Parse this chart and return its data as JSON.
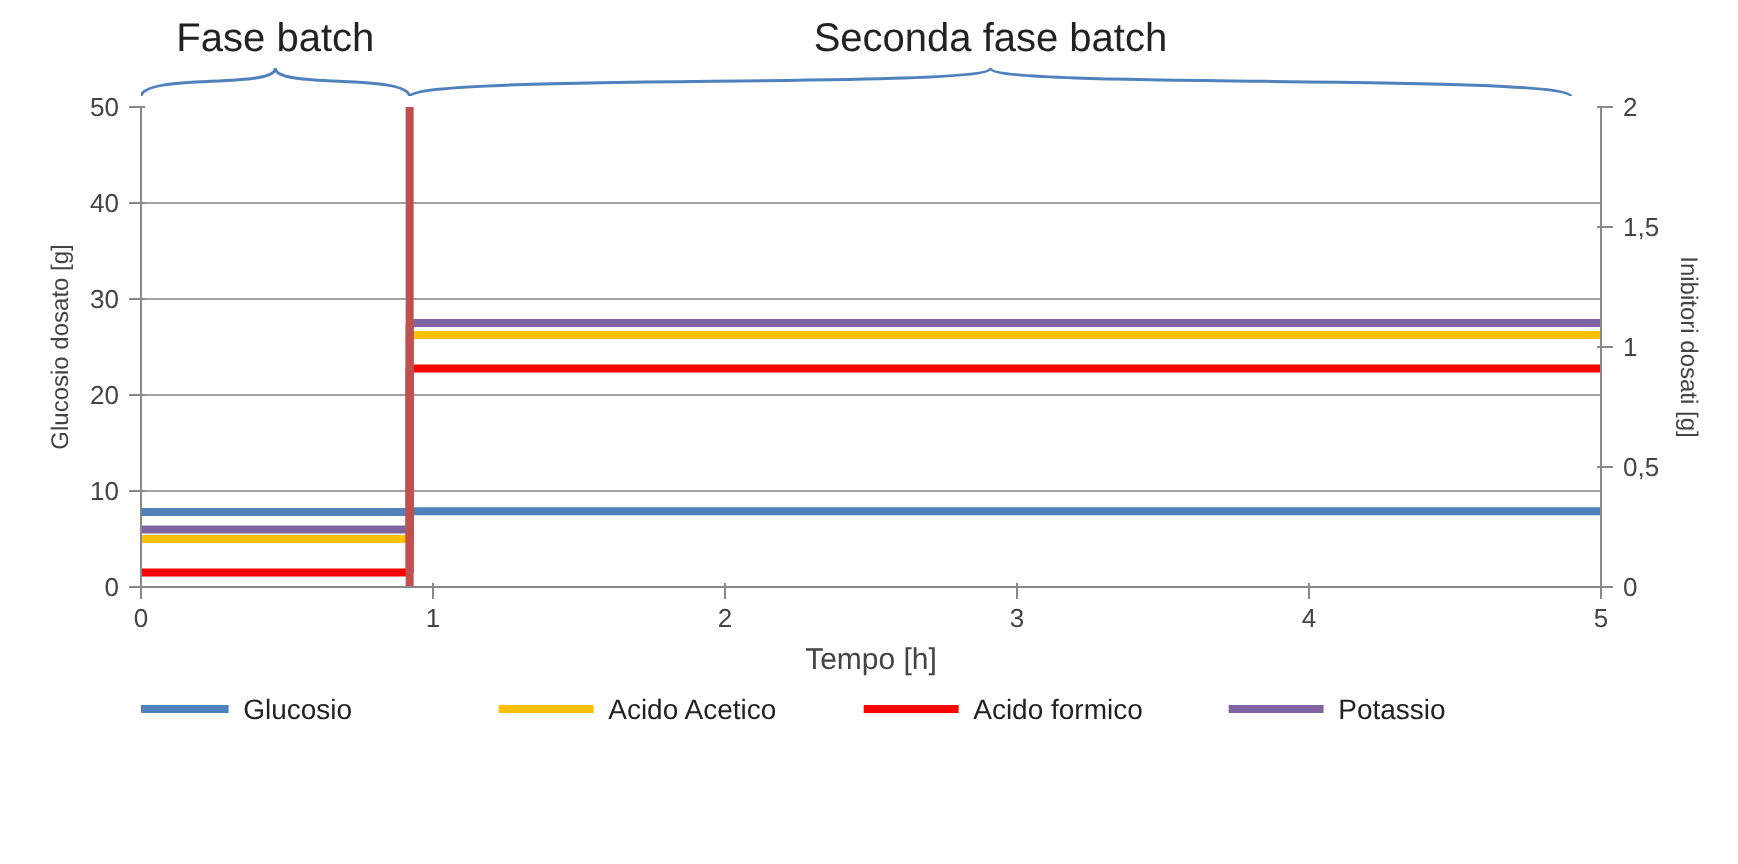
{
  "chart_data": {
    "type": "step",
    "xlabel": "Tempo [h]",
    "ylabel": "Glucosio dosato [g]",
    "y2label": "Inibitori dosati [g]",
    "xlim": [
      0,
      5
    ],
    "xticks": [
      0,
      1,
      2,
      3,
      4,
      5
    ],
    "ylim": [
      0,
      50
    ],
    "yticks": [
      0,
      10,
      20,
      30,
      40,
      50
    ],
    "y2lim": [
      0,
      2
    ],
    "y2ticks": [
      0,
      {
        "value": 0.5,
        "label": "0,5"
      },
      1,
      {
        "value": 1.5,
        "label": "1,5"
      },
      2
    ],
    "x": [
      0,
      0.92,
      5
    ],
    "series": [
      {
        "name": "Glucosio",
        "color": "#4f81bd",
        "values": [
          7.8,
          7.9,
          7.9
        ]
      },
      {
        "name": "Acido Acetico",
        "color": "#ffc000",
        "axis": "y2",
        "values": [
          0.2,
          1.05,
          1.05
        ]
      },
      {
        "name": "Acido formico",
        "color": "#ff0000",
        "axis": "y2",
        "values": [
          0.06,
          0.91,
          0.91
        ]
      },
      {
        "name": "Potassio",
        "color": "#8064a2",
        "axis": "y2",
        "values": [
          0.24,
          1.1,
          1.1
        ]
      }
    ],
    "ref_lines": [
      {
        "axis": "x",
        "value": 0.92,
        "color": "#c0504d"
      }
    ],
    "annotations": [
      "Fase batch",
      "Seconda fase batch"
    ],
    "grid": "y",
    "legend": "bottom"
  }
}
